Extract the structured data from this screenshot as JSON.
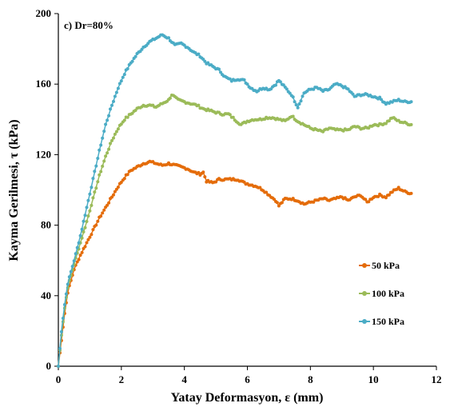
{
  "chart_data": {
    "type": "line",
    "panel_label": "c) Dr=80%",
    "xlabel": "Yatay Deformasyon, ε (mm)",
    "ylabel": "Kayma Gerilmesi, τ (kPa)",
    "xlim": [
      0,
      12
    ],
    "ylim": [
      0,
      200
    ],
    "xticks": [
      "0",
      "2",
      "4",
      "6",
      "8",
      "10",
      "12"
    ],
    "yticks": [
      "0",
      "40",
      "80",
      "120",
      "160",
      "200"
    ],
    "xtick_values": [
      0,
      2,
      4,
      6,
      8,
      10,
      12
    ],
    "ytick_values": [
      0,
      40,
      80,
      120,
      160,
      200
    ],
    "grid": false,
    "legend_position": "right-middle",
    "series": [
      {
        "name": "50 kPa",
        "color": "#E46C0A",
        "points": [
          [
            0,
            0
          ],
          [
            0.1,
            15
          ],
          [
            0.2,
            30
          ],
          [
            0.3,
            42
          ],
          [
            0.5,
            55
          ],
          [
            0.7,
            63
          ],
          [
            0.9,
            70
          ],
          [
            1.1,
            77
          ],
          [
            1.3,
            84
          ],
          [
            1.5,
            90
          ],
          [
            1.7,
            96
          ],
          [
            1.9,
            102
          ],
          [
            2.1,
            107
          ],
          [
            2.3,
            111
          ],
          [
            2.5,
            113
          ],
          [
            2.7,
            115
          ],
          [
            2.9,
            116
          ],
          [
            3.1,
            115
          ],
          [
            3.3,
            114
          ],
          [
            3.5,
            115
          ],
          [
            3.7,
            114
          ],
          [
            3.9,
            113
          ],
          [
            4.1,
            112
          ],
          [
            4.3,
            110
          ],
          [
            4.5,
            109
          ],
          [
            4.6,
            110
          ],
          [
            4.7,
            105
          ],
          [
            4.9,
            104
          ],
          [
            5.1,
            106
          ],
          [
            5.3,
            106
          ],
          [
            5.5,
            106
          ],
          [
            5.7,
            106
          ],
          [
            5.9,
            104
          ],
          [
            6.1,
            103
          ],
          [
            6.3,
            102
          ],
          [
            6.5,
            100
          ],
          [
            6.7,
            97
          ],
          [
            6.9,
            94
          ],
          [
            7.0,
            91
          ],
          [
            7.2,
            95
          ],
          [
            7.4,
            95
          ],
          [
            7.6,
            94
          ],
          [
            7.8,
            92
          ],
          [
            8.0,
            93
          ],
          [
            8.2,
            94
          ],
          [
            8.4,
            95
          ],
          [
            8.6,
            94
          ],
          [
            8.8,
            95
          ],
          [
            9.0,
            96
          ],
          [
            9.2,
            94
          ],
          [
            9.4,
            96
          ],
          [
            9.6,
            97
          ],
          [
            9.8,
            93
          ],
          [
            10.0,
            96
          ],
          [
            10.2,
            97
          ],
          [
            10.4,
            96
          ],
          [
            10.6,
            99
          ],
          [
            10.8,
            101
          ],
          [
            11.0,
            99
          ],
          [
            11.2,
            98
          ]
        ]
      },
      {
        "name": "100 kPa",
        "color": "#9BBB59",
        "points": [
          [
            0,
            0
          ],
          [
            0.1,
            18
          ],
          [
            0.2,
            33
          ],
          [
            0.3,
            45
          ],
          [
            0.5,
            58
          ],
          [
            0.7,
            70
          ],
          [
            0.9,
            82
          ],
          [
            1.1,
            95
          ],
          [
            1.3,
            108
          ],
          [
            1.5,
            119
          ],
          [
            1.7,
            128
          ],
          [
            1.9,
            135
          ],
          [
            2.1,
            140
          ],
          [
            2.3,
            143
          ],
          [
            2.5,
            146
          ],
          [
            2.7,
            148
          ],
          [
            2.9,
            148
          ],
          [
            3.1,
            147
          ],
          [
            3.3,
            149
          ],
          [
            3.5,
            151
          ],
          [
            3.6,
            154
          ],
          [
            3.8,
            151
          ],
          [
            4.0,
            150
          ],
          [
            4.2,
            149
          ],
          [
            4.4,
            148
          ],
          [
            4.6,
            146
          ],
          [
            4.8,
            145
          ],
          [
            5.0,
            144
          ],
          [
            5.2,
            143
          ],
          [
            5.4,
            143
          ],
          [
            5.6,
            140
          ],
          [
            5.8,
            137
          ],
          [
            6.0,
            139
          ],
          [
            6.2,
            140
          ],
          [
            6.4,
            140
          ],
          [
            6.6,
            141
          ],
          [
            6.8,
            141
          ],
          [
            7.0,
            140
          ],
          [
            7.2,
            139
          ],
          [
            7.4,
            142
          ],
          [
            7.6,
            139
          ],
          [
            7.8,
            137
          ],
          [
            8.0,
            135
          ],
          [
            8.2,
            134
          ],
          [
            8.4,
            133
          ],
          [
            8.6,
            135
          ],
          [
            8.8,
            134
          ],
          [
            9.0,
            134
          ],
          [
            9.2,
            134
          ],
          [
            9.4,
            136
          ],
          [
            9.6,
            135
          ],
          [
            9.8,
            135
          ],
          [
            10.0,
            137
          ],
          [
            10.2,
            137
          ],
          [
            10.4,
            138
          ],
          [
            10.6,
            141
          ],
          [
            10.8,
            139
          ],
          [
            11.0,
            138
          ],
          [
            11.2,
            137
          ]
        ]
      },
      {
        "name": "150 kPa",
        "color": "#4BACC6",
        "points": [
          [
            0,
            0
          ],
          [
            0.1,
            20
          ],
          [
            0.2,
            35
          ],
          [
            0.3,
            47
          ],
          [
            0.5,
            60
          ],
          [
            0.7,
            74
          ],
          [
            0.9,
            90
          ],
          [
            1.1,
            106
          ],
          [
            1.3,
            122
          ],
          [
            1.5,
            137
          ],
          [
            1.7,
            148
          ],
          [
            1.9,
            158
          ],
          [
            2.1,
            166
          ],
          [
            2.3,
            172
          ],
          [
            2.5,
            177
          ],
          [
            2.7,
            181
          ],
          [
            2.9,
            184
          ],
          [
            3.1,
            186
          ],
          [
            3.3,
            188
          ],
          [
            3.5,
            186
          ],
          [
            3.7,
            182
          ],
          [
            3.9,
            183
          ],
          [
            4.1,
            181
          ],
          [
            4.3,
            178
          ],
          [
            4.5,
            176
          ],
          [
            4.7,
            172
          ],
          [
            4.9,
            170
          ],
          [
            5.1,
            168
          ],
          [
            5.3,
            164
          ],
          [
            5.5,
            162
          ],
          [
            5.7,
            163
          ],
          [
            5.9,
            162
          ],
          [
            6.1,
            158
          ],
          [
            6.3,
            156
          ],
          [
            6.5,
            158
          ],
          [
            6.7,
            157
          ],
          [
            6.9,
            160
          ],
          [
            7.0,
            162
          ],
          [
            7.2,
            158
          ],
          [
            7.4,
            154
          ],
          [
            7.6,
            147
          ],
          [
            7.8,
            155
          ],
          [
            8.0,
            157
          ],
          [
            8.2,
            158
          ],
          [
            8.4,
            156
          ],
          [
            8.6,
            157
          ],
          [
            8.8,
            160
          ],
          [
            9.0,
            159
          ],
          [
            9.2,
            157
          ],
          [
            9.4,
            153
          ],
          [
            9.6,
            154
          ],
          [
            9.8,
            154
          ],
          [
            10.0,
            153
          ],
          [
            10.2,
            152
          ],
          [
            10.4,
            149
          ],
          [
            10.6,
            150
          ],
          [
            10.8,
            151
          ],
          [
            11.0,
            150
          ],
          [
            11.2,
            150
          ]
        ]
      }
    ]
  }
}
